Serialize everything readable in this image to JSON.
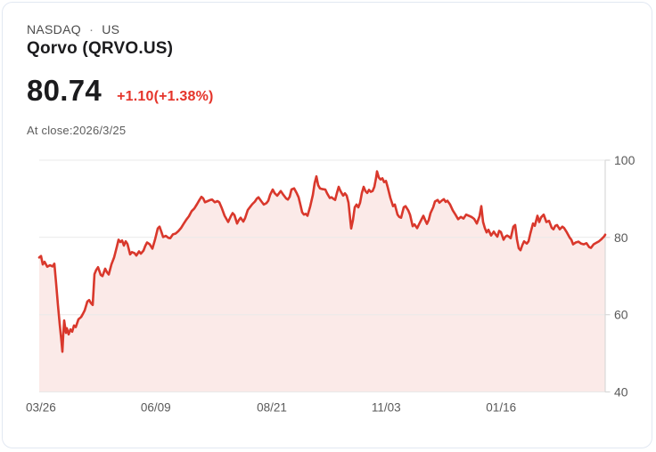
{
  "header": {
    "exchange": "NASDAQ",
    "separator": "·",
    "region": "US",
    "title": "Qorvo (QRVO.US)",
    "price": "80.74",
    "change": "+1.10(+1.38%)",
    "at_close": "At close:2026/3/25"
  },
  "colors": {
    "change_red": "#e5342a",
    "line_red": "#d9382c",
    "area_pink": "#fbeae8",
    "grid": "#e9e9e9",
    "axis": "#d9d9d9",
    "axis_label": "#5a5a5a",
    "card_border": "#e2e8f2"
  },
  "chart_data": {
    "type": "area",
    "series_name": "QRVO.US close price",
    "ylim": [
      40,
      100
    ],
    "yticks": [
      100,
      80,
      60,
      40
    ],
    "xticks": [
      {
        "label": "03/26",
        "pos": 0.003
      },
      {
        "label": "06/09",
        "pos": 0.206
      },
      {
        "label": "08/21",
        "pos": 0.411
      },
      {
        "label": "11/03",
        "pos": 0.613
      },
      {
        "label": "01/16",
        "pos": 0.816
      }
    ],
    "x_max": 635,
    "grid": true,
    "legend": false,
    "last_value": 80.74,
    "points": [
      [
        0,
        74.8
      ],
      [
        2,
        75.2
      ],
      [
        4,
        73.0
      ],
      [
        6,
        73.7
      ],
      [
        9,
        72.4
      ],
      [
        12,
        72.8
      ],
      [
        15,
        72.5
      ],
      [
        17,
        73.2
      ],
      [
        19,
        68.0
      ],
      [
        21,
        62.5
      ],
      [
        23,
        57.5
      ],
      [
        25,
        53.0
      ],
      [
        26,
        50.4
      ],
      [
        27,
        55.0
      ],
      [
        28,
        58.5
      ],
      [
        30,
        55.3
      ],
      [
        31,
        56.5
      ],
      [
        33,
        54.9
      ],
      [
        35,
        56.2
      ],
      [
        37,
        55.6
      ],
      [
        39,
        57.2
      ],
      [
        41,
        56.8
      ],
      [
        44,
        58.8
      ],
      [
        47,
        59.4
      ],
      [
        49,
        60.2
      ],
      [
        51,
        61.1
      ],
      [
        54,
        63.4
      ],
      [
        56,
        63.8
      ],
      [
        58,
        63.0
      ],
      [
        60,
        62.5
      ],
      [
        62,
        70.5
      ],
      [
        64,
        71.6
      ],
      [
        66,
        72.3
      ],
      [
        69,
        70.3
      ],
      [
        71,
        70.0
      ],
      [
        74,
        71.9
      ],
      [
        76,
        71.0
      ],
      [
        78,
        70.4
      ],
      [
        81,
        73.0
      ],
      [
        84,
        74.8
      ],
      [
        87,
        77.5
      ],
      [
        89,
        79.4
      ],
      [
        91,
        78.8
      ],
      [
        93,
        79.2
      ],
      [
        95,
        77.9
      ],
      [
        97,
        79.0
      ],
      [
        99,
        78.3
      ],
      [
        102,
        75.6
      ],
      [
        104,
        76.2
      ],
      [
        107,
        75.9
      ],
      [
        109,
        75.3
      ],
      [
        112,
        76.4
      ],
      [
        114,
        75.8
      ],
      [
        117,
        76.6
      ],
      [
        119,
        77.8
      ],
      [
        121,
        78.7
      ],
      [
        124,
        78.2
      ],
      [
        127,
        77.1
      ],
      [
        130,
        79.5
      ],
      [
        133,
        82.3
      ],
      [
        135,
        82.8
      ],
      [
        137,
        81.5
      ],
      [
        139,
        80.1
      ],
      [
        142,
        80.4
      ],
      [
        145,
        79.9
      ],
      [
        147,
        79.8
      ],
      [
        150,
        80.8
      ],
      [
        153,
        81.0
      ],
      [
        156,
        81.6
      ],
      [
        159,
        82.4
      ],
      [
        162,
        83.5
      ],
      [
        165,
        84.6
      ],
      [
        168,
        85.5
      ],
      [
        171,
        86.8
      ],
      [
        174,
        87.5
      ],
      [
        177,
        88.6
      ],
      [
        180,
        89.8
      ],
      [
        182,
        90.5
      ],
      [
        184,
        90.1
      ],
      [
        186,
        89.1
      ],
      [
        189,
        89.4
      ],
      [
        192,
        89.7
      ],
      [
        194,
        89.8
      ],
      [
        197,
        89.1
      ],
      [
        200,
        89.4
      ],
      [
        202,
        89.1
      ],
      [
        205,
        87.5
      ],
      [
        208,
        85.6
      ],
      [
        210,
        84.8
      ],
      [
        212,
        84.0
      ],
      [
        215,
        85.5
      ],
      [
        217,
        86.3
      ],
      [
        219,
        85.8
      ],
      [
        222,
        83.6
      ],
      [
        224,
        84.5
      ],
      [
        226,
        85.1
      ],
      [
        229,
        84.1
      ],
      [
        231,
        85.0
      ],
      [
        234,
        87.1
      ],
      [
        237,
        88.0
      ],
      [
        239,
        88.6
      ],
      [
        242,
        89.3
      ],
      [
        244,
        90.0
      ],
      [
        246,
        90.4
      ],
      [
        249,
        89.4
      ],
      [
        252,
        88.5
      ],
      [
        255,
        88.9
      ],
      [
        257,
        89.5
      ],
      [
        259,
        91.0
      ],
      [
        262,
        92.4
      ],
      [
        264,
        91.5
      ],
      [
        267,
        90.8
      ],
      [
        269,
        91.4
      ],
      [
        271,
        92.0
      ],
      [
        274,
        91.0
      ],
      [
        277,
        90.1
      ],
      [
        279,
        89.8
      ],
      [
        281,
        90.5
      ],
      [
        283,
        92.4
      ],
      [
        286,
        92.7
      ],
      [
        289,
        91.4
      ],
      [
        291,
        90.4
      ],
      [
        293,
        88.5
      ],
      [
        295,
        86.5
      ],
      [
        297,
        85.9
      ],
      [
        299,
        86.1
      ],
      [
        301,
        85.6
      ],
      [
        304,
        88.0
      ],
      [
        307,
        91.0
      ],
      [
        309,
        94.0
      ],
      [
        311,
        95.8
      ],
      [
        313,
        93.5
      ],
      [
        315,
        92.7
      ],
      [
        318,
        92.5
      ],
      [
        321,
        92.4
      ],
      [
        323,
        91.4
      ],
      [
        326,
        90.2
      ],
      [
        328,
        90.4
      ],
      [
        330,
        90.0
      ],
      [
        332,
        89.7
      ],
      [
        334,
        91.5
      ],
      [
        336,
        93.1
      ],
      [
        338,
        92.0
      ],
      [
        341,
        90.8
      ],
      [
        343,
        91.4
      ],
      [
        345,
        90.8
      ],
      [
        347,
        89.0
      ],
      [
        349,
        84.5
      ],
      [
        350,
        82.3
      ],
      [
        352,
        84.5
      ],
      [
        354,
        87.8
      ],
      [
        356,
        88.5
      ],
      [
        358,
        87.8
      ],
      [
        360,
        89.0
      ],
      [
        362,
        91.5
      ],
      [
        364,
        93.1
      ],
      [
        366,
        92.0
      ],
      [
        368,
        91.5
      ],
      [
        370,
        92.3
      ],
      [
        372,
        91.8
      ],
      [
        374,
        92.0
      ],
      [
        376,
        93.1
      ],
      [
        378,
        95.5
      ],
      [
        379,
        97.1
      ],
      [
        381,
        95.5
      ],
      [
        383,
        95.0
      ],
      [
        385,
        95.3
      ],
      [
        387,
        94.3
      ],
      [
        389,
        94.6
      ],
      [
        391,
        93.0
      ],
      [
        394,
        90.2
      ],
      [
        397,
        88.1
      ],
      [
        399,
        88.5
      ],
      [
        402,
        85.9
      ],
      [
        404,
        85.3
      ],
      [
        406,
        85.1
      ],
      [
        409,
        87.8
      ],
      [
        411,
        88.1
      ],
      [
        414,
        87.0
      ],
      [
        416,
        85.9
      ],
      [
        419,
        82.9
      ],
      [
        421,
        83.4
      ],
      [
        424,
        82.4
      ],
      [
        427,
        83.8
      ],
      [
        429,
        84.7
      ],
      [
        431,
        85.6
      ],
      [
        433,
        84.5
      ],
      [
        435,
        83.5
      ],
      [
        437,
        84.5
      ],
      [
        439,
        86.3
      ],
      [
        442,
        87.8
      ],
      [
        444,
        89.3
      ],
      [
        447,
        89.7
      ],
      [
        449,
        89.0
      ],
      [
        452,
        89.6
      ],
      [
        454,
        89.9
      ],
      [
        456,
        89.2
      ],
      [
        458,
        89.5
      ],
      [
        461,
        88.5
      ],
      [
        464,
        87.0
      ],
      [
        467,
        85.9
      ],
      [
        470,
        84.7
      ],
      [
        473,
        85.3
      ],
      [
        476,
        84.9
      ],
      [
        479,
        85.9
      ],
      [
        482,
        85.6
      ],
      [
        485,
        85.3
      ],
      [
        488,
        84.8
      ],
      [
        491,
        83.6
      ],
      [
        494,
        85.5
      ],
      [
        496,
        88.1
      ],
      [
        498,
        84.0
      ],
      [
        500,
        82.4
      ],
      [
        502,
        81.3
      ],
      [
        504,
        82.0
      ],
      [
        507,
        80.5
      ],
      [
        510,
        81.5
      ],
      [
        512,
        80.8
      ],
      [
        514,
        80.2
      ],
      [
        516,
        81.7
      ],
      [
        518,
        81.4
      ],
      [
        521,
        79.4
      ],
      [
        523,
        80.2
      ],
      [
        525,
        80.5
      ],
      [
        527,
        80.2
      ],
      [
        529,
        79.8
      ],
      [
        532,
        82.8
      ],
      [
        534,
        83.2
      ],
      [
        536,
        79.5
      ],
      [
        538,
        77.2
      ],
      [
        540,
        76.7
      ],
      [
        542,
        78.0
      ],
      [
        544,
        79.0
      ],
      [
        547,
        78.4
      ],
      [
        549,
        79.0
      ],
      [
        551,
        81.0
      ],
      [
        554,
        83.6
      ],
      [
        556,
        83.0
      ],
      [
        559,
        85.6
      ],
      [
        561,
        84.0
      ],
      [
        563,
        85.2
      ],
      [
        566,
        85.9
      ],
      [
        569,
        84.0
      ],
      [
        572,
        84.3
      ],
      [
        575,
        82.5
      ],
      [
        577,
        82.1
      ],
      [
        579,
        83.0
      ],
      [
        581,
        83.2
      ],
      [
        584,
        82.1
      ],
      [
        587,
        82.8
      ],
      [
        589,
        82.4
      ],
      [
        592,
        81.3
      ],
      [
        595,
        80.0
      ],
      [
        597,
        79.4
      ],
      [
        599,
        78.2
      ],
      [
        602,
        78.7
      ],
      [
        605,
        78.9
      ],
      [
        608,
        78.4
      ],
      [
        611,
        78.2
      ],
      [
        614,
        78.5
      ],
      [
        617,
        77.5
      ],
      [
        619,
        77.3
      ],
      [
        622,
        78.2
      ],
      [
        625,
        78.6
      ],
      [
        628,
        79.0
      ],
      [
        631,
        79.6
      ],
      [
        634,
        80.3
      ],
      [
        635,
        80.7
      ]
    ]
  }
}
